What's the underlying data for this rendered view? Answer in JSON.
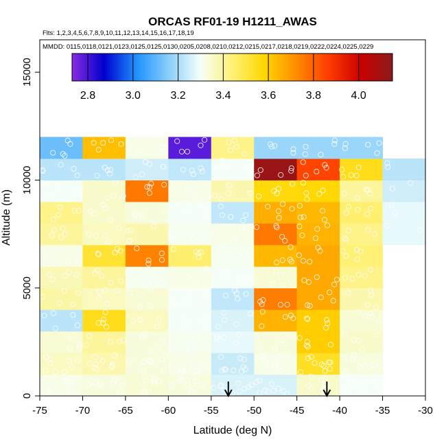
{
  "chart_data": {
    "type": "heatmap",
    "title": "ORCAS RF01-19 H1211_AWAS",
    "flights_line": "Flts: 1,2,3,4,5,6,7,8,9,10,11,12,13,14,15,16,17,18,19",
    "mmdd_line": "MMDD: 0115,0118,0121,0123,0125,0125,0130,0205,0208,0210,0212,0215,0217,0218,0219,0222,0224,0225,0229",
    "xlabel": "Latitude (deg N)",
    "ylabel": "Altitude (m)",
    "xlim": [
      -75,
      -30
    ],
    "ylim": [
      0,
      16500
    ],
    "x_ticks": [
      -75,
      -70,
      -65,
      -60,
      -55,
      -50,
      -45,
      -40,
      -35,
      -30
    ],
    "y_ticks": [
      0,
      5000,
      10000,
      15000
    ],
    "colorbar": {
      "range": [
        2.73,
        4.15
      ],
      "ticks": [
        2.8,
        3.0,
        3.2,
        3.4,
        3.6,
        3.8,
        4.0
      ],
      "tick_labels": [
        "2.8",
        "3.0",
        "3.2",
        "3.4",
        "3.6",
        "3.8",
        "4.0"
      ],
      "colors": [
        "#8a2be2",
        "#0000cd",
        "#1e90ff",
        "#87cefa",
        "#f5fffa",
        "#fff176",
        "#ffd700",
        "#ff8c00",
        "#ff3c00",
        "#cc0000",
        "#8b1a1a"
      ]
    },
    "lat_bins": [
      -75,
      -70,
      -65,
      -60,
      -55,
      -50,
      -45,
      -40,
      -35,
      -30
    ],
    "alt_bins": [
      0,
      1000,
      2000,
      3000,
      4000,
      5000,
      6000,
      7000,
      8000,
      9000,
      10000,
      11000,
      12000
    ],
    "values": [
      [
        3.32,
        3.33,
        3.34,
        3.33,
        3.26,
        3.26,
        3.35,
        3.3,
        null
      ],
      [
        3.36,
        3.38,
        3.33,
        3.32,
        3.24,
        3.32,
        3.54,
        3.33,
        null
      ],
      [
        3.34,
        3.4,
        3.33,
        3.31,
        3.28,
        3.33,
        3.6,
        3.35,
        null
      ],
      [
        3.22,
        3.55,
        3.36,
        3.3,
        3.26,
        3.65,
        3.6,
        3.34,
        null
      ],
      [
        3.39,
        3.36,
        3.34,
        3.3,
        3.23,
        3.75,
        3.67,
        3.38,
        null
      ],
      [
        3.37,
        3.4,
        3.31,
        3.32,
        3.3,
        3.34,
        3.67,
        3.42,
        null
      ],
      [
        3.32,
        3.52,
        3.74,
        3.45,
        3.31,
        3.64,
        3.67,
        3.44,
        null
      ],
      [
        3.4,
        3.36,
        3.38,
        3.31,
        3.32,
        3.76,
        3.65,
        3.42,
        3.28
      ],
      [
        3.42,
        3.35,
        3.33,
        3.3,
        3.23,
        3.66,
        3.64,
        3.45,
        3.28
      ],
      [
        3.3,
        3.35,
        3.76,
        3.32,
        3.38,
        3.57,
        3.58,
        3.4,
        3.25
      ],
      [
        3.22,
        3.22,
        3.25,
        3.23,
        3.3,
        4.12,
        3.85,
        3.55,
        3.22
      ],
      [
        3.12,
        3.63,
        3.32,
        2.78,
        3.42,
        3.18,
        3.18,
        3.18,
        null
      ]
    ],
    "arrows_at_latitude": [
      -53,
      -41.5
    ]
  }
}
